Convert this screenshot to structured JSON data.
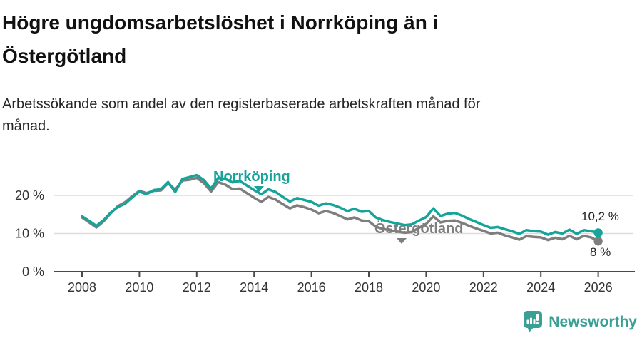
{
  "header": {
    "title_line1": "Högre ungdomsarbetslöshet i Norrköping än i",
    "title_line2": "Östergötland",
    "subtitle_line1": "Arbetssökande som andel av den registerbaserade arbetskraften månad för",
    "subtitle_line2": "månad."
  },
  "chart_data": {
    "type": "line",
    "title": "Högre ungdomsarbetslöshet i Norrköping än i Östergötland",
    "subtitle": "Arbetssökande som andel av den registerbaserade arbetskraften månad för månad.",
    "x_start": 2008.0,
    "x_step": 0.25,
    "xlim": [
      2008,
      2026.1
    ],
    "ylim": [
      0,
      27
    ],
    "grid": "horizontal",
    "legend_position": "inline-labels",
    "x_ticks": [
      "2008",
      "2010",
      "2012",
      "2014",
      "2016",
      "2018",
      "2020",
      "2022",
      "2024",
      "2026"
    ],
    "y_ticks": [
      {
        "value": 0,
        "label": "0 %"
      },
      {
        "value": 10,
        "label": "10 %"
      },
      {
        "value": 20,
        "label": "20 %"
      }
    ],
    "series": [
      {
        "name": "Norrköping",
        "color": "#15a39a",
        "end_label": "10,2 %",
        "values": [
          14.5,
          13.3,
          12.0,
          13.5,
          15.5,
          17.0,
          17.8,
          19.5,
          21.0,
          20.3,
          21.4,
          21.6,
          23.5,
          20.9,
          24.3,
          24.8,
          25.3,
          24.0,
          21.8,
          24.6,
          24.3,
          23.4,
          23.8,
          22.6,
          21.4,
          20.3,
          21.6,
          20.9,
          19.6,
          18.4,
          19.3,
          18.8,
          18.3,
          17.3,
          17.9,
          17.5,
          16.8,
          15.9,
          16.5,
          15.7,
          15.9,
          14.2,
          13.5,
          13.0,
          12.6,
          12.2,
          12.4,
          13.4,
          14.3,
          16.6,
          14.6,
          15.2,
          15.4,
          14.7,
          13.8,
          13.0,
          12.2,
          11.5,
          11.7,
          11.1,
          10.6,
          9.9,
          10.9,
          10.6,
          10.5,
          9.7,
          10.4,
          10.0,
          11.0,
          9.9,
          10.9,
          10.6,
          10.2
        ]
      },
      {
        "name": "Östergötland",
        "color": "#7e7e7e",
        "end_label": "8 %",
        "values": [
          14.2,
          12.9,
          11.6,
          13.2,
          15.3,
          17.2,
          18.2,
          19.8,
          21.2,
          20.6,
          21.2,
          21.3,
          23.2,
          21.5,
          23.9,
          24.1,
          24.6,
          23.2,
          21.0,
          23.5,
          22.8,
          21.6,
          21.8,
          20.6,
          19.4,
          18.3,
          19.6,
          18.9,
          17.7,
          16.6,
          17.4,
          16.9,
          16.3,
          15.3,
          15.9,
          15.4,
          14.6,
          13.7,
          14.2,
          13.4,
          13.2,
          11.8,
          11.2,
          10.8,
          10.5,
          10.2,
          10.4,
          11.5,
          12.5,
          14.5,
          12.9,
          13.3,
          13.4,
          12.8,
          12.0,
          11.3,
          10.7,
          10.0,
          10.2,
          9.5,
          9.0,
          8.4,
          9.3,
          9.1,
          9.0,
          8.3,
          8.9,
          8.5,
          9.4,
          8.5,
          9.4,
          9.0,
          8.0
        ]
      }
    ]
  },
  "annotations": {
    "series1_label": "Norrköping",
    "series2_label": "Östergötland",
    "end_value_1": "10,2 %",
    "end_value_2": "8 %"
  },
  "footer": {
    "brand": "Newsworthy"
  },
  "colors": {
    "accent_teal": "#15a39a",
    "series_gray": "#7e7e7e",
    "brand_teal": "#3aa096",
    "grid": "#dcdcdc",
    "axis": "#4a4a4a",
    "tick_text": "#333333"
  }
}
